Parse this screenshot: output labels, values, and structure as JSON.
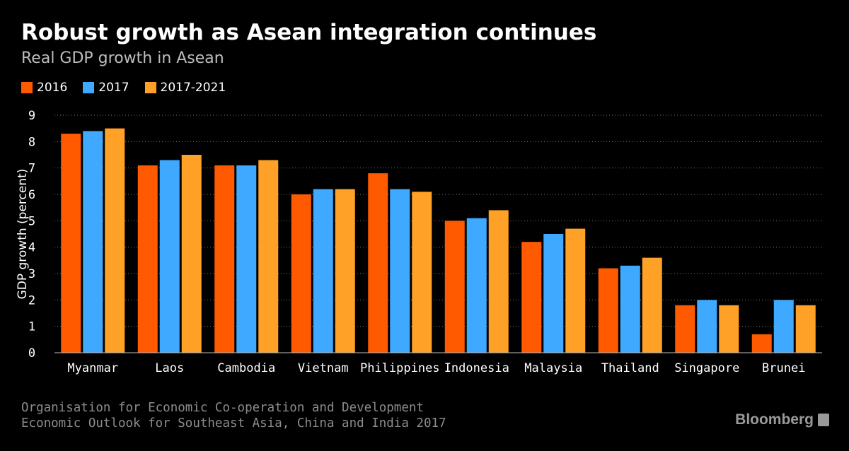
{
  "title": "Robust growth as Asean integration continues",
  "subtitle": "Real GDP growth in Asean",
  "source": {
    "line1": "Organisation for Economic Co-operation and Development",
    "line2": "Economic Outlook for Southeast Asia, China and India 2017"
  },
  "brand": "Bloomberg",
  "colors": {
    "background": "#000000",
    "s2016": "#ff5a00",
    "s2017": "#3fa9ff",
    "s2017_2021": "#ffa126",
    "grid": "#7a7a7a",
    "text": "#ffffff"
  },
  "chart_data": {
    "type": "bar",
    "title": "Robust growth as Asean integration continues",
    "subtitle": "Real GDP growth in Asean",
    "xlabel": "",
    "ylabel": "GDP growth (percent)",
    "ylim": [
      0,
      9
    ],
    "yticks": [
      0,
      1,
      2,
      3,
      4,
      5,
      6,
      7,
      8,
      9
    ],
    "grid": true,
    "legend": "top-left",
    "categories": [
      "Myanmar",
      "Laos",
      "Cambodia",
      "Vietnam",
      "Philippines",
      "Indonesia",
      "Malaysia",
      "Thailand",
      "Singapore",
      "Brunei"
    ],
    "series": [
      {
        "name": "2016",
        "color": "#ff5a00",
        "values": [
          8.3,
          7.1,
          7.1,
          6.0,
          6.8,
          5.0,
          4.2,
          3.2,
          1.8,
          0.7
        ]
      },
      {
        "name": "2017",
        "color": "#3fa9ff",
        "values": [
          8.4,
          7.3,
          7.1,
          6.2,
          6.2,
          5.1,
          4.5,
          3.3,
          2.0,
          2.0
        ]
      },
      {
        "name": "2017-2021",
        "color": "#ffa126",
        "values": [
          8.5,
          7.5,
          7.3,
          6.2,
          6.1,
          5.4,
          4.7,
          3.6,
          1.8,
          1.8
        ]
      }
    ]
  }
}
